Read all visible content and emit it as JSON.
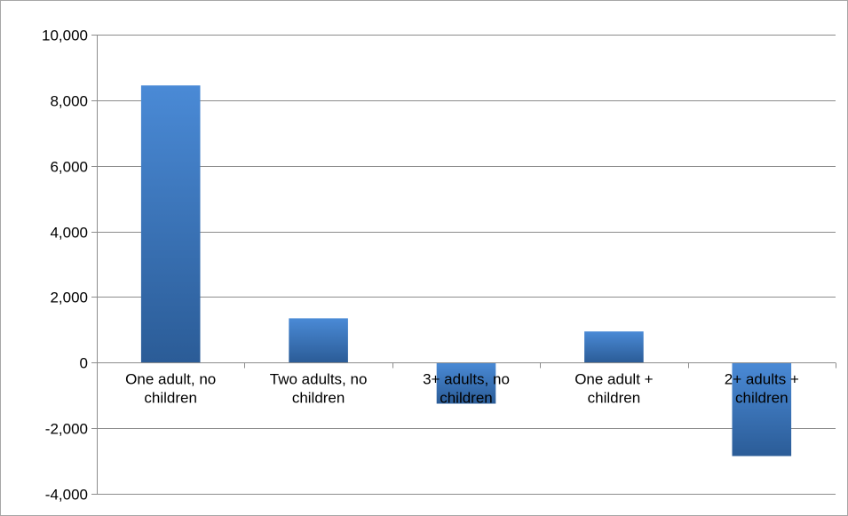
{
  "chart_data": {
    "type": "bar",
    "title": "",
    "xlabel": "",
    "ylabel": "",
    "categories": [
      [
        "One adult, no",
        "children"
      ],
      [
        "Two adults, no",
        "children"
      ],
      [
        "3+ adults, no",
        "children"
      ],
      [
        "One adult +",
        "children"
      ],
      [
        "2+ adults +",
        "children"
      ]
    ],
    "values": [
      8450,
      1350,
      -1250,
      950,
      -2850
    ],
    "ylim": [
      -4000,
      10000
    ],
    "yticks": [
      -4000,
      -2000,
      0,
      2000,
      4000,
      6000,
      8000,
      10000
    ],
    "ytick_labels": [
      "-4,000",
      "-2,000",
      "0",
      "2,000",
      "4,000",
      "6,000",
      "8,000",
      "10,000"
    ],
    "grid": true,
    "legend": "none",
    "colors": {
      "bar_top": "#4a8ad6",
      "bar_bottom": "#2b5c97",
      "grid": "#8c8c8c",
      "axis": "#8c8c8c",
      "frame": "#a6a6a6"
    }
  }
}
